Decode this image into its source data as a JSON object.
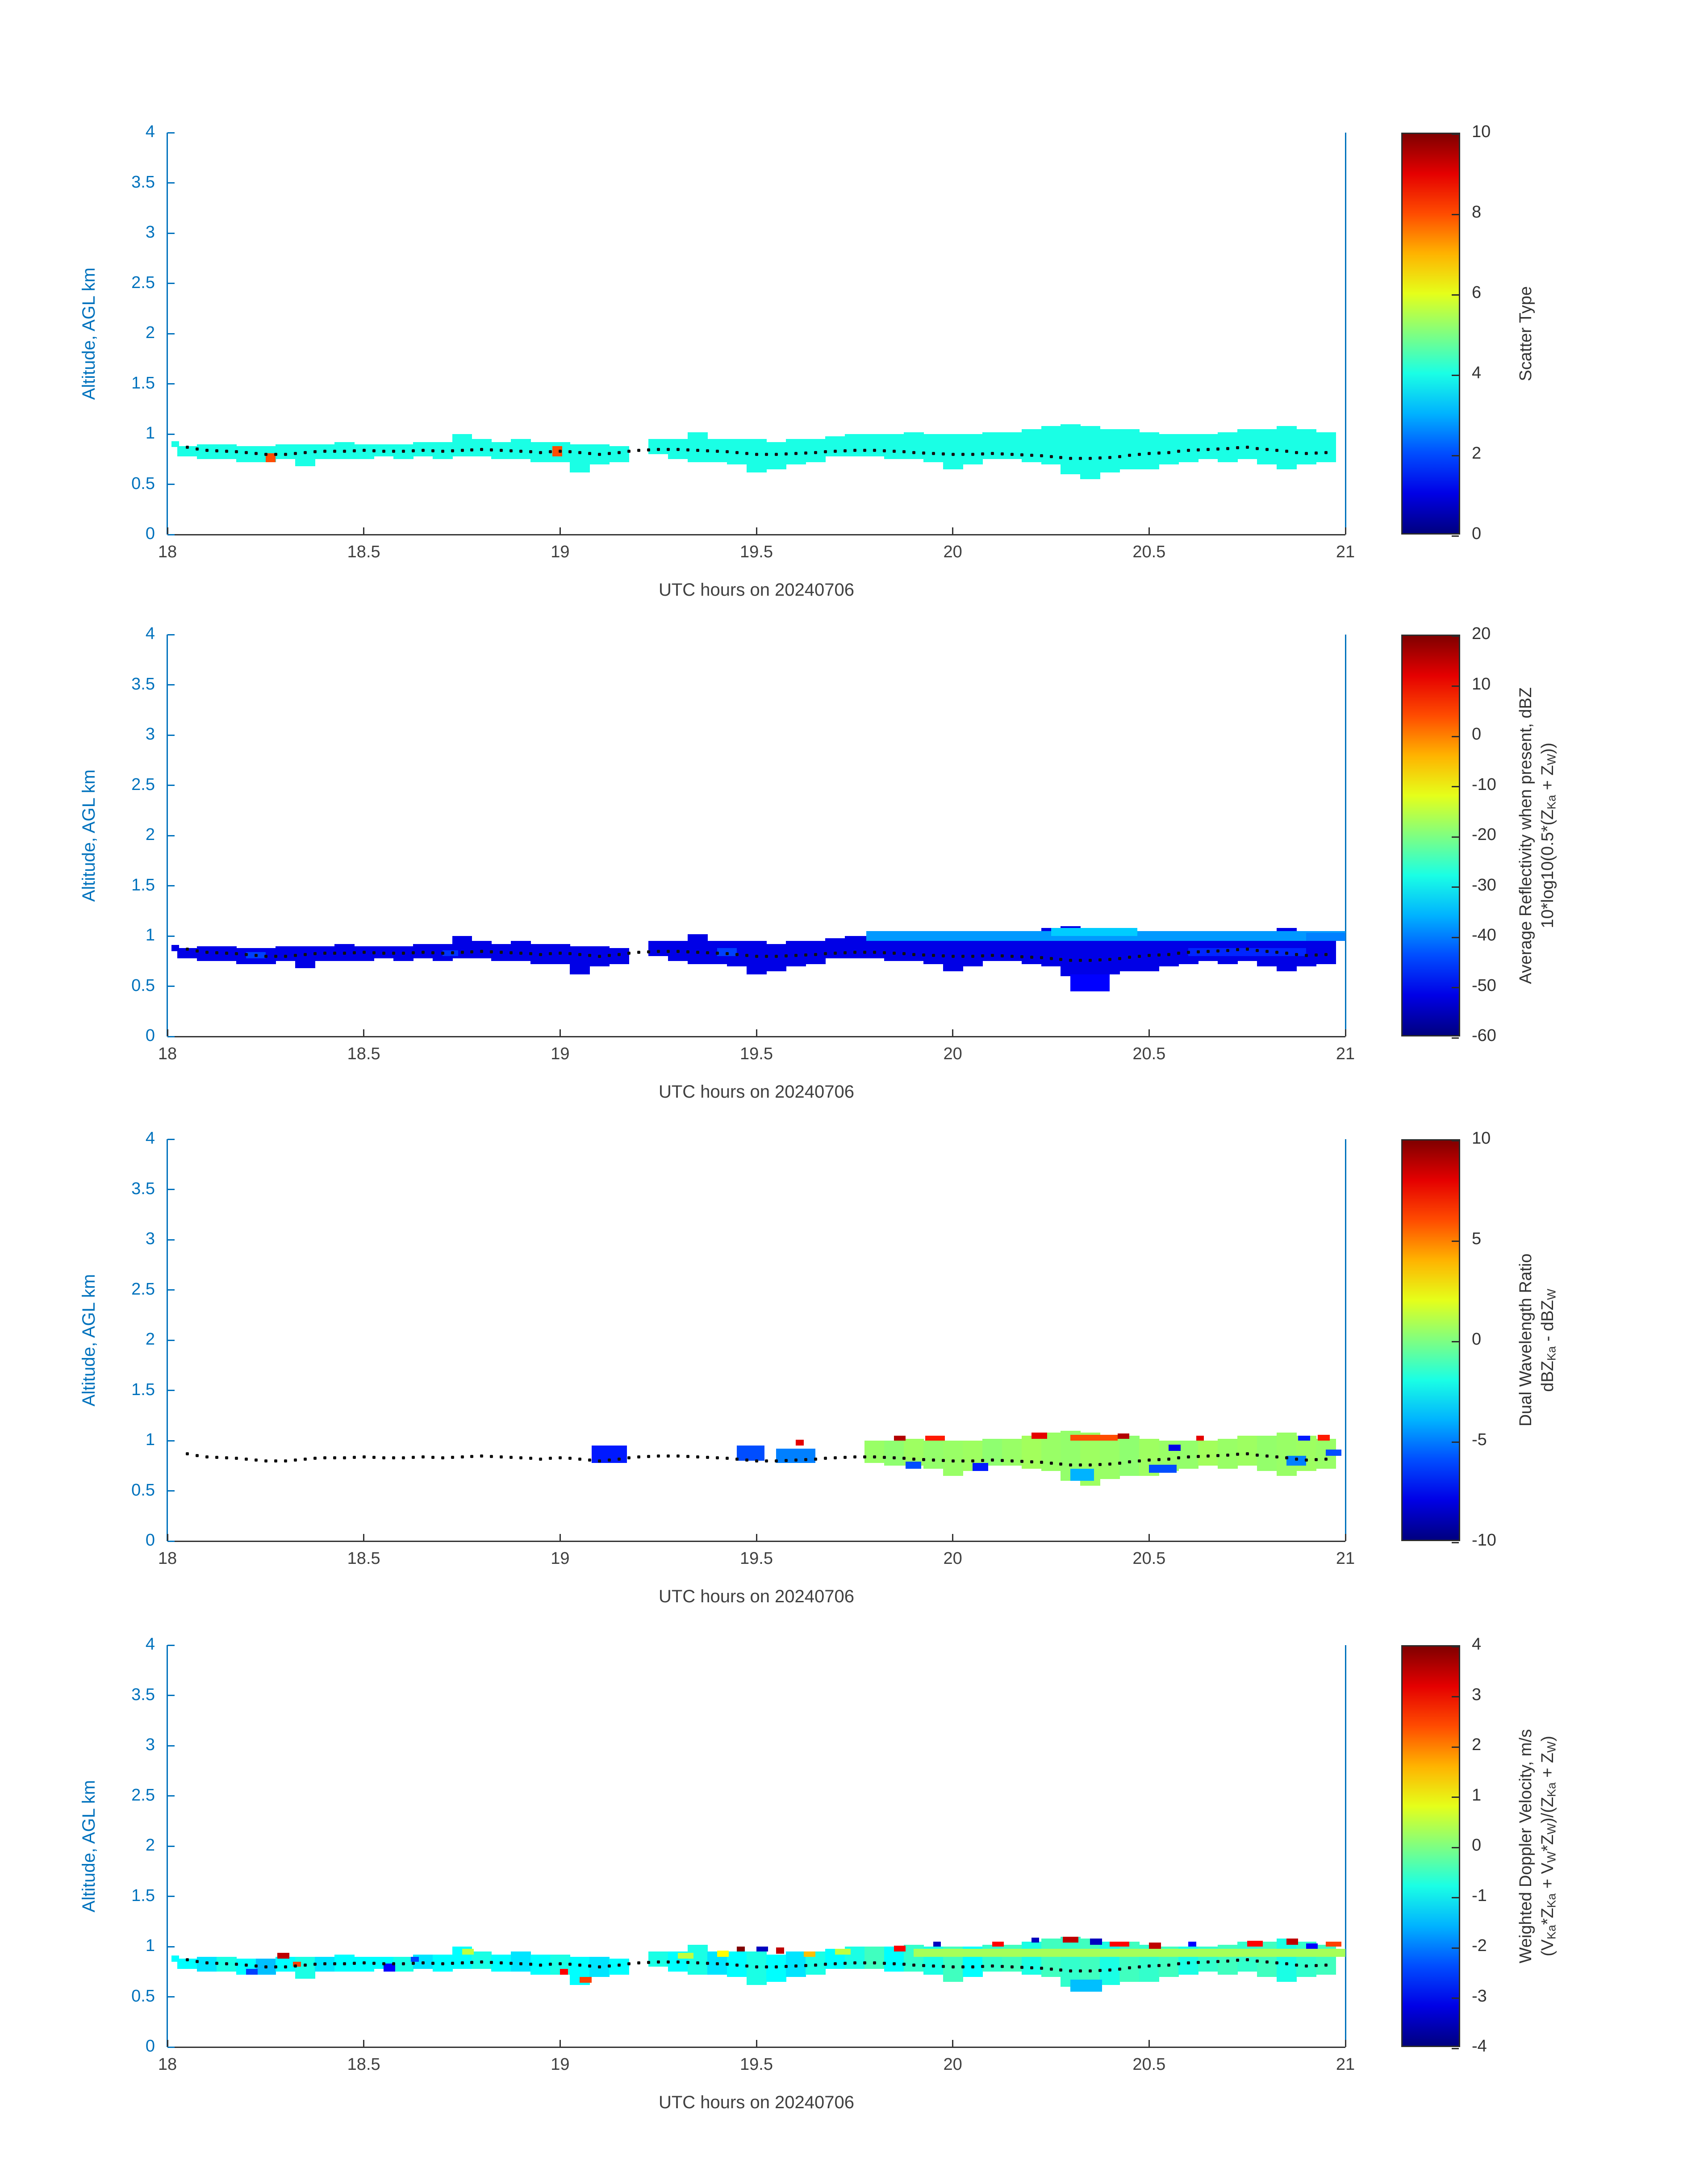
{
  "style": {
    "axis_blue": "#0072BD",
    "axis_dark": "#404040",
    "dot_color": "#111111",
    "background": "#ffffff"
  },
  "chart_data": {
    "type": "heatmap",
    "title": "",
    "x_label": "UTC hours on 20240706",
    "y_label": "Altitude, AGL km",
    "x_range": [
      18,
      21
    ],
    "y_range": [
      0,
      4
    ],
    "x_ticks": [
      18,
      18.5,
      19,
      19.5,
      20,
      20.5,
      21
    ],
    "y_ticks": [
      0,
      0.5,
      1,
      1.5,
      2,
      2.5,
      3,
      3.5,
      4
    ],
    "colormap": "jet",
    "grid": false,
    "time_grid": {
      "t0": 18.05,
      "dt": 0.05,
      "bottom": [
        0.78,
        0.75,
        0.75,
        0.72,
        0.72,
        0.75,
        0.68,
        0.75,
        0.75,
        0.75,
        0.78,
        0.75,
        0.78,
        0.75,
        0.78,
        0.78,
        0.75,
        0.75,
        0.72,
        0.72,
        0.62,
        0.7,
        0.72,
        null,
        0.8,
        0.75,
        0.72,
        0.72,
        0.7,
        0.62,
        0.65,
        0.7,
        0.72,
        0.78,
        0.78,
        0.78,
        0.75,
        0.75,
        0.72,
        0.65,
        0.7,
        0.75,
        0.75,
        0.72,
        0.7,
        0.6,
        0.55,
        0.62,
        0.65,
        0.65,
        0.7,
        0.72,
        0.75,
        0.72,
        0.75,
        0.7,
        0.65,
        0.7,
        0.72
      ],
      "top": [
        0.88,
        0.9,
        0.9,
        0.88,
        0.88,
        0.9,
        0.9,
        0.9,
        0.92,
        0.9,
        0.9,
        0.9,
        0.92,
        0.92,
        1.0,
        0.95,
        0.92,
        0.95,
        0.92,
        0.92,
        0.9,
        0.9,
        0.88,
        null,
        0.95,
        0.95,
        1.02,
        0.95,
        0.95,
        0.95,
        0.92,
        0.95,
        0.95,
        0.98,
        1.0,
        1.0,
        1.0,
        1.02,
        1.0,
        1.0,
        1.0,
        1.02,
        1.02,
        1.05,
        1.08,
        1.1,
        1.08,
        1.05,
        1.05,
        1.02,
        1.0,
        1.0,
        1.0,
        1.02,
        1.05,
        1.05,
        1.08,
        1.05,
        1.02
      ]
    },
    "median_line": {
      "t0": 18.05,
      "dt": 0.05,
      "alt": [
        0.87,
        0.84,
        0.83,
        0.82,
        0.8,
        0.8,
        0.82,
        0.83,
        0.83,
        0.84,
        0.83,
        0.83,
        0.84,
        0.83,
        0.84,
        0.85,
        0.84,
        0.83,
        0.82,
        0.83,
        0.82,
        0.8,
        0.82,
        0.84,
        0.85,
        0.85,
        0.84,
        0.83,
        0.82,
        0.8,
        0.8,
        0.81,
        0.82,
        0.83,
        0.84,
        0.84,
        0.83,
        0.82,
        0.81,
        0.8,
        0.8,
        0.81,
        0.8,
        0.79,
        0.78,
        0.76,
        0.76,
        0.77,
        0.79,
        0.81,
        0.82,
        0.84,
        0.85,
        0.86,
        0.87,
        0.85,
        0.83,
        0.81,
        0.82
      ]
    },
    "panels": [
      {
        "id": "scatter-type",
        "colorbar_label_lines": [
          "Scatter Type"
        ],
        "vmin": 0,
        "vmax": 10,
        "colorbar_ticks": [
          0,
          2,
          4,
          6,
          8,
          10
        ],
        "values": [
          4,
          4,
          4,
          4,
          4,
          4,
          4,
          4,
          4,
          4,
          4,
          4,
          4,
          4,
          4,
          4,
          4,
          4,
          4,
          4,
          4,
          4,
          4,
          null,
          4,
          4,
          4,
          4,
          4,
          4,
          4,
          4,
          4,
          4,
          4,
          4,
          4,
          4,
          4,
          4,
          4,
          4,
          4,
          4,
          4,
          4,
          4,
          4,
          4,
          4,
          4,
          4,
          4,
          4,
          4,
          4,
          4,
          4,
          4
        ],
        "extras": [
          {
            "t": 18.01,
            "w": 0.02,
            "a": 0.87,
            "h": 0.06,
            "v": 4
          },
          {
            "t": 18.25,
            "w": 0.025,
            "a": 0.72,
            "h": 0.09,
            "v": 8
          },
          {
            "t": 18.98,
            "w": 0.025,
            "a": 0.78,
            "h": 0.1,
            "v": 8
          }
        ]
      },
      {
        "id": "average-reflectivity",
        "colorbar_label_lines": [
          "Average Reflectivity when present, dBZ",
          "10*log10(0.5*(Z_{Ka} + Z_{W}))"
        ],
        "vmin": -60,
        "vmax": 20,
        "colorbar_ticks": [
          -60,
          -50,
          -40,
          -30,
          -20,
          -10,
          0,
          10,
          20
        ],
        "values": [
          -52,
          -52,
          -52,
          -52,
          -52,
          -52,
          -52,
          -52,
          -52,
          -52,
          -52,
          -52,
          -52,
          -52,
          -52,
          -52,
          -52,
          -52,
          -52,
          -52,
          -52,
          -52,
          -52,
          null,
          -52,
          -52,
          -52,
          -52,
          -52,
          -52,
          -52,
          -52,
          -52,
          -52,
          -52,
          -52,
          -52,
          -52,
          -52,
          -52,
          -52,
          -52,
          -52,
          -52,
          -52,
          -52,
          -52,
          -52,
          -52,
          -52,
          -52,
          -52,
          -52,
          -52,
          -52,
          -52,
          -52,
          -52,
          -52
        ],
        "extras": [
          {
            "t": 18.01,
            "w": 0.02,
            "a": 0.85,
            "h": 0.06,
            "v": -52
          },
          {
            "t": 19.78,
            "w": 1.22,
            "a": 0.95,
            "h": 0.1,
            "v": -38
          },
          {
            "t": 20.25,
            "w": 0.22,
            "a": 1.0,
            "h": 0.08,
            "v": -34
          },
          {
            "t": 20.3,
            "w": 0.1,
            "a": 0.45,
            "h": 0.17,
            "v": -50
          },
          {
            "t": 18.2,
            "w": 0.05,
            "a": 0.78,
            "h": 0.06,
            "v": -45
          },
          {
            "t": 18.7,
            "w": 0.04,
            "a": 0.8,
            "h": 0.06,
            "v": -46
          },
          {
            "t": 19.4,
            "w": 0.05,
            "a": 0.8,
            "h": 0.08,
            "v": -45
          },
          {
            "t": 20.6,
            "w": 0.3,
            "a": 0.8,
            "h": 0.08,
            "v": -47
          },
          {
            "t": 20.9,
            "w": 0.1,
            "a": 0.95,
            "h": 0.08,
            "v": -40
          }
        ]
      },
      {
        "id": "dual-wavelength-ratio",
        "colorbar_label_lines": [
          "Dual Wavelength Ratio",
          "dBZ_{Ka} - dBZ_{W}"
        ],
        "vmin": -10,
        "vmax": 10,
        "colorbar_ticks": [
          -10,
          -5,
          0,
          5,
          10
        ],
        "values": [
          null,
          null,
          null,
          null,
          null,
          null,
          null,
          null,
          null,
          null,
          null,
          null,
          null,
          null,
          null,
          null,
          null,
          null,
          null,
          null,
          null,
          null,
          null,
          null,
          null,
          null,
          null,
          null,
          null,
          null,
          null,
          null,
          null,
          null,
          null,
          0.5,
          0.3,
          0.6,
          0.4,
          0.5,
          0.6,
          0.3,
          0.5,
          0.7,
          0.5,
          0.4,
          0.6,
          0.5,
          0.3,
          0.6,
          0.5,
          0.4,
          0.7,
          0.5,
          0.6,
          0.4,
          0.5,
          0.6,
          0.5
        ],
        "extras": [
          {
            "t": 19.08,
            "w": 0.09,
            "a": 0.78,
            "h": 0.17,
            "v": -7
          },
          {
            "t": 19.45,
            "w": 0.07,
            "a": 0.8,
            "h": 0.15,
            "v": -6
          },
          {
            "t": 19.55,
            "w": 0.1,
            "a": 0.78,
            "h": 0.14,
            "v": -5
          },
          {
            "t": 19.6,
            "w": 0.02,
            "a": 0.95,
            "h": 0.06,
            "v": 8
          },
          {
            "t": 19.85,
            "w": 0.03,
            "a": 1.0,
            "h": 0.05,
            "v": 9
          },
          {
            "t": 19.93,
            "w": 0.05,
            "a": 1.0,
            "h": 0.05,
            "v": 7
          },
          {
            "t": 19.88,
            "w": 0.04,
            "a": 0.72,
            "h": 0.07,
            "v": -6
          },
          {
            "t": 20.05,
            "w": 0.04,
            "a": 0.7,
            "h": 0.08,
            "v": -7
          },
          {
            "t": 20.2,
            "w": 0.04,
            "a": 1.02,
            "h": 0.06,
            "v": 8
          },
          {
            "t": 20.3,
            "w": 0.12,
            "a": 1.0,
            "h": 0.06,
            "v": 6
          },
          {
            "t": 20.3,
            "w": 0.06,
            "a": 0.6,
            "h": 0.12,
            "v": -4
          },
          {
            "t": 20.42,
            "w": 0.03,
            "a": 1.02,
            "h": 0.05,
            "v": 9
          },
          {
            "t": 20.5,
            "w": 0.07,
            "a": 0.68,
            "h": 0.08,
            "v": -6
          },
          {
            "t": 20.55,
            "w": 0.03,
            "a": 0.9,
            "h": 0.06,
            "v": -8
          },
          {
            "t": 20.62,
            "w": 0.02,
            "a": 1.0,
            "h": 0.05,
            "v": 8
          },
          {
            "t": 20.85,
            "w": 0.05,
            "a": 0.75,
            "h": 0.1,
            "v": -5
          },
          {
            "t": 20.88,
            "w": 0.03,
            "a": 1.0,
            "h": 0.05,
            "v": -7
          },
          {
            "t": 20.93,
            "w": 0.03,
            "a": 1.0,
            "h": 0.06,
            "v": 7
          },
          {
            "t": 20.95,
            "w": 0.04,
            "a": 0.85,
            "h": 0.06,
            "v": -6
          }
        ]
      },
      {
        "id": "weighted-doppler-velocity",
        "colorbar_label_lines": [
          "Weighted Doppler Velocity, m/s",
          "(V_{Ka}*Z_{Ka} + V_{W}*Z_{W})/(Z_{Ka} + Z_{W})"
        ],
        "vmin": -4,
        "vmax": 4,
        "colorbar_ticks": [
          -4,
          -3,
          -2,
          -1,
          0,
          1,
          2,
          3,
          4
        ],
        "values": [
          -1,
          -1.2,
          -0.8,
          -1,
          -1.5,
          -1,
          -0.8,
          -1.2,
          -1,
          -1,
          -1,
          -0.8,
          -1.2,
          -1,
          -1,
          -0.8,
          -1,
          -1.2,
          -1,
          -0.8,
          -1,
          -1.2,
          -1,
          null,
          -0.8,
          -1,
          -0.8,
          -1.2,
          -1,
          -0.8,
          -1,
          -1.2,
          -0.8,
          -1,
          -0.8,
          -0.5,
          -1,
          -0.6,
          -0.8,
          -0.5,
          -1,
          -0.6,
          -0.5,
          -0.8,
          -0.5,
          -0.6,
          -0.5,
          -0.8,
          -0.5,
          -0.6,
          -0.5,
          -0.8,
          -0.6,
          -0.5,
          -0.6,
          -0.5,
          -0.8,
          -0.6,
          -0.5
        ],
        "extras": [
          {
            "t": 18.01,
            "w": 0.02,
            "a": 0.85,
            "h": 0.06,
            "v": -1
          },
          {
            "t": 18.28,
            "w": 0.03,
            "a": 0.88,
            "h": 0.06,
            "v": 3.5
          },
          {
            "t": 18.32,
            "w": 0.02,
            "a": 0.8,
            "h": 0.05,
            "v": 2.5
          },
          {
            "t": 18.2,
            "w": 0.03,
            "a": 0.72,
            "h": 0.06,
            "v": -2.5
          },
          {
            "t": 18.55,
            "w": 0.03,
            "a": 0.75,
            "h": 0.08,
            "v": -3
          },
          {
            "t": 18.62,
            "w": 0.02,
            "a": 0.85,
            "h": 0.05,
            "v": -2.5
          },
          {
            "t": 18.75,
            "w": 0.03,
            "a": 0.92,
            "h": 0.06,
            "v": 0.5
          },
          {
            "t": 19.0,
            "w": 0.02,
            "a": 0.72,
            "h": 0.06,
            "v": 3
          },
          {
            "t": 19.05,
            "w": 0.03,
            "a": 0.64,
            "h": 0.06,
            "v": 2.5
          },
          {
            "t": 19.3,
            "w": 0.04,
            "a": 0.88,
            "h": 0.06,
            "v": 0.5
          },
          {
            "t": 19.4,
            "w": 0.03,
            "a": 0.9,
            "h": 0.06,
            "v": 1
          },
          {
            "t": 19.45,
            "w": 0.02,
            "a": 0.95,
            "h": 0.05,
            "v": 4
          },
          {
            "t": 19.5,
            "w": 0.03,
            "a": 0.95,
            "h": 0.05,
            "v": -3.5
          },
          {
            "t": 19.55,
            "w": 0.02,
            "a": 0.93,
            "h": 0.06,
            "v": 3.5
          },
          {
            "t": 19.62,
            "w": 0.03,
            "a": 0.9,
            "h": 0.05,
            "v": 1.5
          },
          {
            "t": 19.7,
            "w": 0.04,
            "a": 0.92,
            "h": 0.06,
            "v": 0.5
          },
          {
            "t": 19.9,
            "w": 1.1,
            "a": 0.9,
            "h": 0.08,
            "v": 0.3
          },
          {
            "t": 19.85,
            "w": 0.03,
            "a": 0.95,
            "h": 0.06,
            "v": 3
          },
          {
            "t": 19.95,
            "w": 0.02,
            "a": 1.0,
            "h": 0.05,
            "v": -3.5
          },
          {
            "t": 20.1,
            "w": 0.03,
            "a": 1.0,
            "h": 0.05,
            "v": 3
          },
          {
            "t": 20.2,
            "w": 0.02,
            "a": 1.04,
            "h": 0.05,
            "v": -3.5
          },
          {
            "t": 20.28,
            "w": 0.04,
            "a": 1.04,
            "h": 0.06,
            "v": 3.5
          },
          {
            "t": 20.35,
            "w": 0.03,
            "a": 1.02,
            "h": 0.06,
            "v": -3.5
          },
          {
            "t": 20.4,
            "w": 0.05,
            "a": 1.0,
            "h": 0.05,
            "v": 3
          },
          {
            "t": 20.5,
            "w": 0.03,
            "a": 0.98,
            "h": 0.06,
            "v": 3.5
          },
          {
            "t": 20.6,
            "w": 0.02,
            "a": 1.0,
            "h": 0.05,
            "v": -3
          },
          {
            "t": 20.75,
            "w": 0.04,
            "a": 1.0,
            "h": 0.06,
            "v": 3
          },
          {
            "t": 20.85,
            "w": 0.03,
            "a": 1.02,
            "h": 0.06,
            "v": 3.5
          },
          {
            "t": 20.9,
            "w": 0.03,
            "a": 0.98,
            "h": 0.05,
            "v": -3
          },
          {
            "t": 20.95,
            "w": 0.04,
            "a": 1.0,
            "h": 0.05,
            "v": 2.5
          },
          {
            "t": 20.3,
            "w": 0.08,
            "a": 0.55,
            "h": 0.12,
            "v": -1.5
          }
        ]
      }
    ]
  }
}
